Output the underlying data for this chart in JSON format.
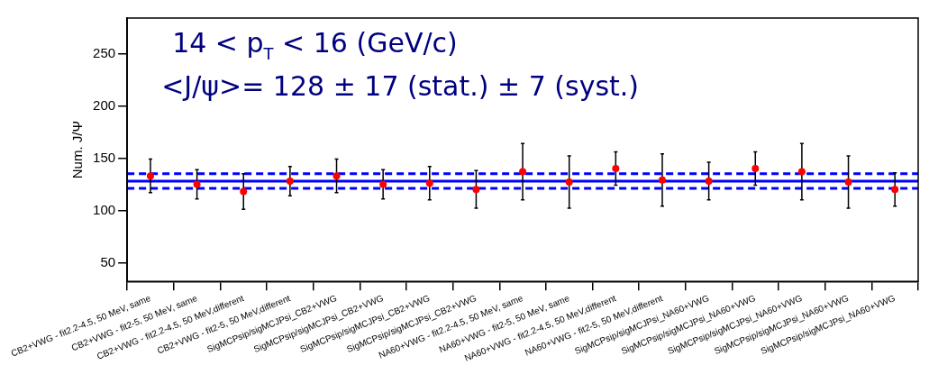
{
  "chart_data": {
    "type": "scatter",
    "ylabel": "Num. J/Ψ",
    "annotations": [
      "14 < p$_{T}$ < 16 (GeV/c)",
      "<J/ψ>= 128 ± 17 (stat.) ± 7 (syst.)"
    ],
    "categories": [
      "CB2+VWG - fit2.2-4.5, 50 MeV, same",
      "CB2+VWG - fit2-5, 50 MeV, same",
      "CB2+VWG - fit2.2-4.5, 50 MeV,different",
      "CB2+VWG - fit2-5, 50 MeV,different",
      "SigMCPsip/sigMCJPsi_CB2+VWG",
      "SigMCPsip/sigMCJPsi_CB2+VWG",
      "SigMCPsip/sigMCJPsi_CB2+VWG",
      "SigMCPsip/sigMCJPsi_CB2+VWG",
      "NA60+VWG - fit2.2-4.5, 50 MeV, same",
      "NA60+VWG - fit2-5, 50 MeV, same",
      "NA60+VWG - fit2.2-4.5, 50 MeV,different",
      "NA60+VWG - fit2-5, 50 MeV,different",
      "SigMCPsip/sigMCJPsi_NA60+VWG",
      "SigMCPsip/sigMCJPsi_NA60+VWG",
      "SigMCPsip/sigMCJPsi_NA60+VWG",
      "SigMCPsip/sigMCJPsi_NA60+VWG",
      "SigMCPsip/sigMCJPsi_NA60+VWG"
    ],
    "series": [
      {
        "color": "#ff0000",
        "values": [
          133,
          125,
          118,
          128,
          133,
          125,
          126,
          120,
          137,
          127,
          140,
          129,
          128,
          140,
          137,
          127,
          120
        ],
        "errors": [
          16,
          14,
          17,
          14,
          16,
          14,
          16,
          18,
          27,
          25,
          16,
          25,
          18,
          16,
          27,
          25,
          16
        ]
      }
    ],
    "ylim": [
      32,
      284
    ],
    "yticks": [
      50,
      100,
      150,
      200,
      250
    ],
    "ref_lines": [
      {
        "axis": "y",
        "value": 128,
        "color": "#0000ff",
        "line_style": "solid"
      },
      {
        "axis": "y",
        "value": 121,
        "color": "#0000ff",
        "line_style": "dashed"
      },
      {
        "axis": "y",
        "value": 135,
        "color": "#0000ff",
        "line_style": "dashed"
      }
    ],
    "marker": "circle",
    "grid": false,
    "legend": false
  }
}
